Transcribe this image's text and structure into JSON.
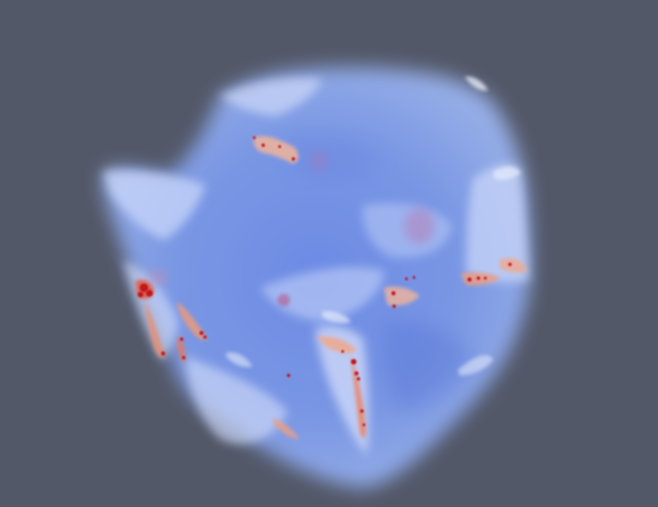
{
  "viewport": {
    "background_color": "#535868",
    "rendering": "volume-render",
    "colormap": [
      "#4f6fe0",
      "#8aa9f2",
      "#dfe6fb",
      "#f2b49a",
      "#e0553f",
      "#c0121d"
    ]
  }
}
